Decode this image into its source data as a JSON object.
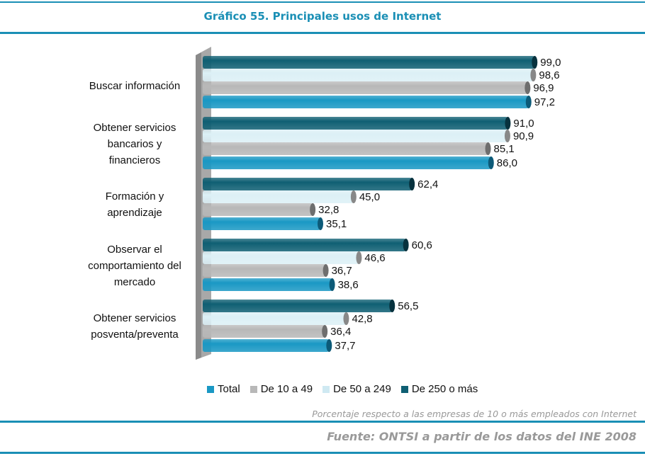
{
  "title": "Gráfico 55. Principales usos de Internet",
  "chart_data": {
    "type": "bar",
    "orientation": "horizontal",
    "title": "Gráfico 55. Principales usos de Internet",
    "categories": [
      [
        "Buscar información"
      ],
      [
        "Obtener servicios",
        "bancarios y",
        "financieros"
      ],
      [
        "Formación y",
        "aprendizaje"
      ],
      [
        "Observar el",
        "comportamiento del",
        "mercado"
      ],
      [
        "Obtener servicios",
        "posventa/preventa"
      ]
    ],
    "series": [
      {
        "name": "De 250 o más",
        "color": "#0f5f73",
        "values": [
          99.0,
          91.0,
          62.4,
          60.6,
          56.5
        ],
        "labels": [
          "99,0",
          "91,0",
          "62,4",
          "60,6",
          "56,5"
        ]
      },
      {
        "name": "De 50 a 249",
        "color": "#dcf0f6",
        "values": [
          98.6,
          90.9,
          45.0,
          46.6,
          42.8
        ],
        "labels": [
          "98,6",
          "90,9",
          "45,0",
          "46,6",
          "42,8"
        ]
      },
      {
        "name": "De 10 a 49",
        "color": "#b8b8b8",
        "values": [
          96.9,
          85.1,
          32.8,
          36.7,
          36.4
        ],
        "labels": [
          "96,9",
          "85,1",
          "32,8",
          "36,7",
          "36,4"
        ]
      },
      {
        "name": "Total",
        "color": "#1a98c4",
        "values": [
          97.2,
          86.0,
          35.1,
          38.6,
          37.7
        ],
        "labels": [
          "97,2",
          "86,0",
          "35,1",
          "38,6",
          "37,7"
        ]
      }
    ],
    "legend_order": [
      "Total",
      "De 10 a 49",
      "De 50 a 249",
      "De 250 o más"
    ],
    "xlim": [
      0,
      100
    ],
    "grid": false,
    "legend": "bottom"
  },
  "note": "Porcentaje respecto a las empresas de 10 o más empleados con Internet",
  "source": "Fuente: ONTSI a partir de los datos del INE 2008"
}
